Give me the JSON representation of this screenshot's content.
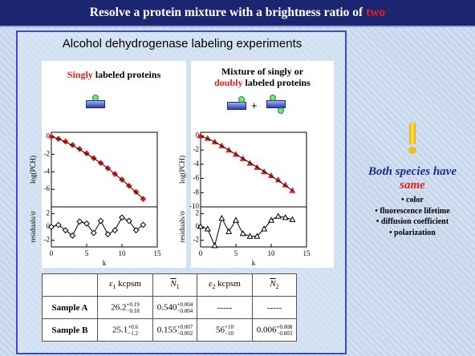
{
  "title": {
    "text": "Resolve a protein mixture with a brightness ratio of ",
    "highlight": "two"
  },
  "panel_title": "Alcohol dehydrogenase labeling experiments",
  "left_heading": {
    "highlight": "Singly",
    "rest": " labeled proteins"
  },
  "right_heading": {
    "line1": "Mixture of singly or",
    "highlight": "doubly",
    "rest": " labeled proteins"
  },
  "plus": "+",
  "chart_data": [
    {
      "type": "line",
      "ylabel": "log(PCH)",
      "x": [
        0,
        1,
        2,
        3,
        4,
        5,
        6,
        7,
        8,
        9,
        10,
        11,
        12,
        13
      ],
      "xlim": [
        0,
        15
      ],
      "ylim": [
        -8,
        0.5
      ],
      "yticks": [
        0,
        -2,
        -4,
        -6
      ],
      "series": [
        {
          "color": "#e0201b",
          "marker": "diamond",
          "filled": true,
          "line": false,
          "values": [
            0,
            -0.25,
            -0.55,
            -0.95,
            -1.4,
            -1.9,
            -2.45,
            -3.0,
            -3.6,
            -4.25,
            -4.9,
            -5.6,
            -6.3,
            -7.1
          ]
        },
        {
          "color": "#000000",
          "line": true,
          "values": [
            0,
            -0.25,
            -0.6,
            -1.0,
            -1.45,
            -1.95,
            -2.45,
            -3.0,
            -3.6,
            -4.25,
            -4.9,
            -5.6,
            -6.35,
            -7.05
          ]
        }
      ]
    },
    {
      "type": "line",
      "ylabel": "residuals/σ",
      "xlabel": "k",
      "x": [
        0,
        1,
        2,
        3,
        4,
        5,
        6,
        7,
        8,
        9,
        10,
        11,
        12,
        13
      ],
      "xlim": [
        0,
        15
      ],
      "xticks": [
        0,
        5,
        10,
        15
      ],
      "ylim": [
        -3,
        3
      ],
      "yticks": [
        2,
        0,
        -2
      ],
      "series": [
        {
          "color": "#000000",
          "marker": "diamond",
          "filled": false,
          "line": true,
          "values": [
            0,
            0.3,
            -0.5,
            -1.3,
            0.8,
            0.5,
            -0.9,
            0.9,
            -1.1,
            -0.5,
            1.4,
            0.9,
            -0.5,
            0.3
          ]
        }
      ]
    },
    {
      "type": "line",
      "ylabel": "log(PCH)",
      "x": [
        0,
        1,
        2,
        3,
        4,
        5,
        6,
        7,
        8,
        9,
        10,
        11,
        12,
        13
      ],
      "xlim": [
        0,
        15
      ],
      "ylim": [
        -10,
        0.5
      ],
      "yticks": [
        0,
        -2,
        -4,
        -6,
        -8,
        -10
      ],
      "series": [
        {
          "color": "#e0201b",
          "marker": "triangle",
          "filled": true,
          "line": false,
          "values": [
            0,
            -0.35,
            -0.85,
            -1.4,
            -2.0,
            -2.6,
            -3.2,
            -3.85,
            -4.45,
            -5.05,
            -5.6,
            -6.2,
            -6.9,
            -7.7
          ]
        },
        {
          "color": "#000000",
          "line": true,
          "values": [
            0,
            -0.4,
            -0.85,
            -1.4,
            -2.0,
            -2.6,
            -3.2,
            -3.8,
            -4.4,
            -5.0,
            -5.65,
            -6.3,
            -7.0,
            -7.7
          ]
        }
      ]
    },
    {
      "type": "line",
      "ylabel": "residuals/σ",
      "xlabel": "k",
      "x": [
        0,
        1,
        2,
        3,
        4,
        5,
        6,
        7,
        8,
        9,
        10,
        11,
        12,
        13
      ],
      "xlim": [
        0,
        15
      ],
      "xticks": [
        0,
        5,
        10,
        15
      ],
      "ylim": [
        -3,
        3
      ],
      "yticks": [
        2,
        0,
        -2
      ],
      "series": [
        {
          "color": "#000000",
          "marker": "triangle",
          "filled": false,
          "line": true,
          "values": [
            0.1,
            -0.3,
            -2.8,
            1.3,
            -0.7,
            1.0,
            -1.0,
            -1.4,
            -1.4,
            -0.3,
            1.0,
            1.6,
            1.4,
            1.1
          ]
        }
      ]
    }
  ],
  "side": {
    "headline": "Both species have",
    "emphasis": "same",
    "items": [
      "• color",
      "• fluorescence lifetime",
      "• diffusion coefficient",
      "• polarization"
    ]
  },
  "table": {
    "header": [
      {
        "symbol": "ε",
        "sub": "1",
        "unit": " kcpsm"
      },
      {
        "symbol": "N",
        "sub": "1"
      },
      {
        "symbol": "ε",
        "sub": "2",
        "unit": " kcpsm"
      },
      {
        "symbol": "N",
        "sub": "2"
      }
    ],
    "rows": [
      {
        "label": "Sample A",
        "cells": [
          {
            "value": "26.2",
            "plus": "+0.19",
            "minus": "−0.18"
          },
          {
            "value": "0.540",
            "plus": "+0.004",
            "minus": "−0.004"
          },
          {
            "value": "-----"
          },
          {
            "value": "-----"
          }
        ]
      },
      {
        "label": "Sample B",
        "cells": [
          {
            "value": "25.1",
            "plus": "+0.6",
            "minus": "−1.2"
          },
          {
            "value": "0.155",
            "plus": "+0.007",
            "minus": "−0.002"
          },
          {
            "value": "56",
            "plus": "+10",
            "minus": "−10"
          },
          {
            "value": "0.006",
            "plus": "+0.008",
            "minus": "−0.003"
          }
        ]
      }
    ]
  }
}
